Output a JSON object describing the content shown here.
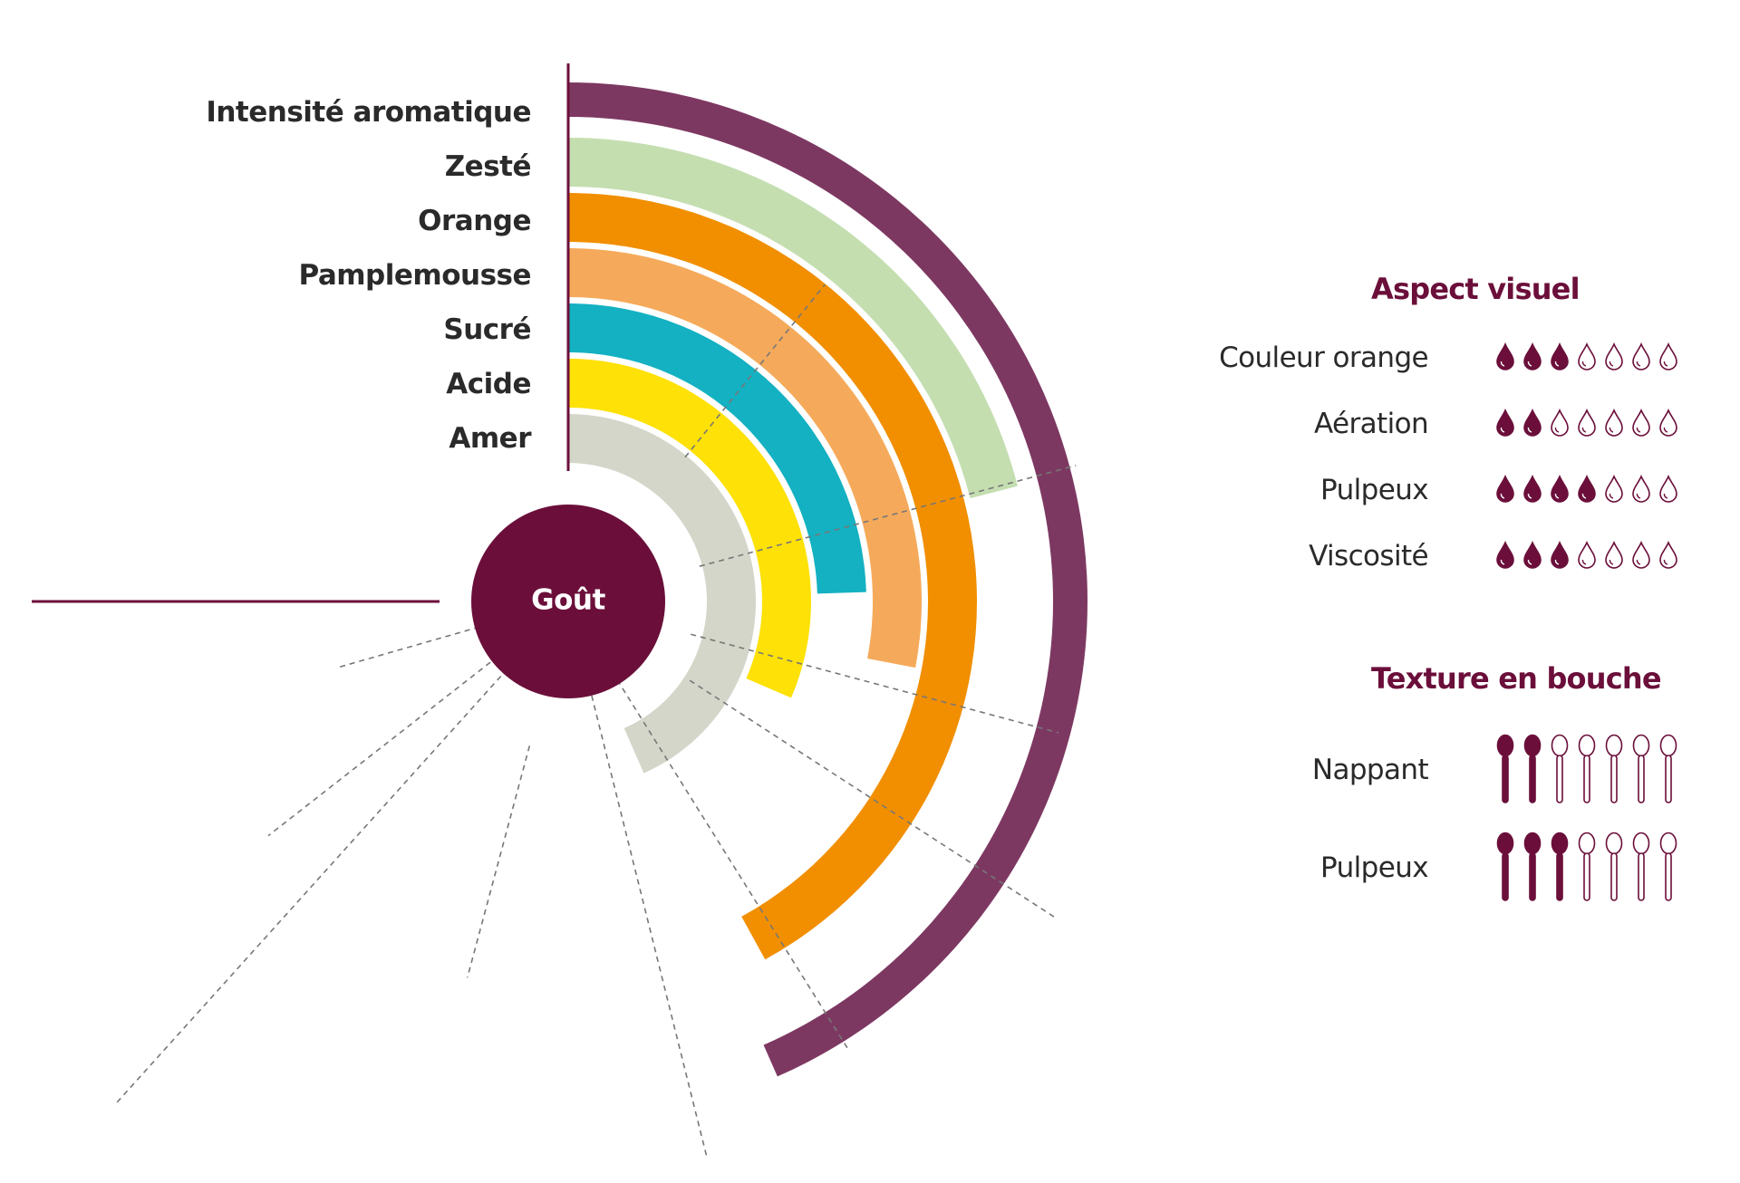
{
  "center_label": "Goût",
  "colors": {
    "accent": "#6b0f3a",
    "intensite": "#7d3862",
    "zeste": "#c4deb0",
    "orange": "#f18f01",
    "pamplemousse": "#f5aa5b",
    "sucre": "#13b1c2",
    "acide": "#fde107",
    "amer": "#d3d6c9",
    "text": "#2a2a2a"
  },
  "chart_data": {
    "type": "radial-bar",
    "scale_max": 10,
    "series": [
      {
        "label": "Intensité aromatique",
        "value": 6.2,
        "color_key": "intensite"
      },
      {
        "label": "Zesté",
        "value": 3.0,
        "color_key": "zeste"
      },
      {
        "label": "Orange",
        "value": 6.0,
        "color_key": "orange"
      },
      {
        "label": "Pamplemousse",
        "value": 4.0,
        "color_key": "pamplemousse"
      },
      {
        "label": "Sucré",
        "value": 3.5,
        "color_key": "sucre"
      },
      {
        "label": "Acide",
        "value": 4.5,
        "color_key": "acide"
      },
      {
        "label": "Amer",
        "value": 6.2,
        "color_key": "amer"
      }
    ]
  },
  "aspect_visuel": {
    "title": "Aspect visuel",
    "max": 7,
    "icon": "drop-icon",
    "items": [
      {
        "label": "Couleur orange",
        "value": 3
      },
      {
        "label": "Aération",
        "value": 2
      },
      {
        "label": "Pulpeux",
        "value": 4
      },
      {
        "label": "Viscosité",
        "value": 3
      }
    ]
  },
  "texture_en_bouche": {
    "title": "Texture en bouche",
    "max": 7,
    "icon": "spoon-icon",
    "items": [
      {
        "label": "Nappant",
        "value": 2
      },
      {
        "label": "Pulpeux",
        "value": 3
      }
    ]
  }
}
